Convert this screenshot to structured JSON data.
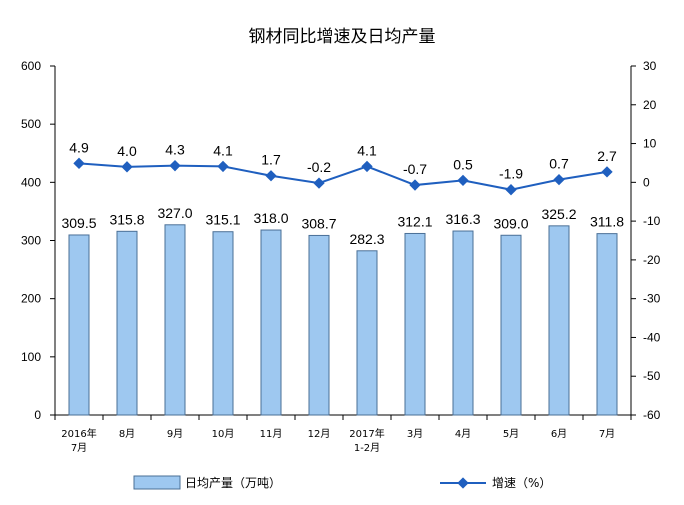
{
  "chart_data": {
    "type": "bar",
    "title": "钢材同比增速及日均产量",
    "categories": [
      [
        "2016年",
        "7月"
      ],
      [
        "8月"
      ],
      [
        "9月"
      ],
      [
        "10月"
      ],
      [
        "11月"
      ],
      [
        "12月"
      ],
      [
        "2017年",
        "1-2月"
      ],
      [
        "3月"
      ],
      [
        "4月"
      ],
      [
        "5月"
      ],
      [
        "6月"
      ],
      [
        "7月"
      ]
    ],
    "series": [
      {
        "name": "日均产量（万吨）",
        "type": "bar",
        "axis": "left",
        "color": "#9ec8f0",
        "values": [
          309.5,
          315.8,
          327.0,
          315.1,
          318.0,
          308.7,
          282.3,
          312.1,
          316.3,
          309.0,
          325.2,
          311.8
        ],
        "labels": [
          "309.5",
          "315.8",
          "327.0",
          "315.1",
          "318.0",
          "308.7",
          "282.3",
          "312.1",
          "316.3",
          "309.0",
          "325.2",
          "311.8"
        ]
      },
      {
        "name": "增速（%）",
        "type": "line",
        "axis": "right",
        "color": "#1f5fbf",
        "values": [
          4.9,
          4.0,
          4.3,
          4.1,
          1.7,
          -0.2,
          4.1,
          -0.7,
          0.5,
          -1.9,
          0.7,
          2.7
        ],
        "labels": [
          "4.9",
          "4.0",
          "4.3",
          "4.1",
          "1.7",
          "-0.2",
          "4.1",
          "-0.7",
          "0.5",
          "-1.9",
          "0.7",
          "2.7"
        ]
      }
    ],
    "y_left": {
      "min": 0,
      "max": 600,
      "step": 100,
      "ticks": [
        "0",
        "100",
        "200",
        "300",
        "400",
        "500",
        "600"
      ]
    },
    "y_right": {
      "min": -60,
      "max": 30,
      "step": 10,
      "ticks": [
        "-60",
        "-50",
        "-40",
        "-30",
        "-20",
        "-10",
        "0",
        "10",
        "20",
        "30"
      ]
    },
    "grid": false,
    "legend_position": "bottom"
  }
}
